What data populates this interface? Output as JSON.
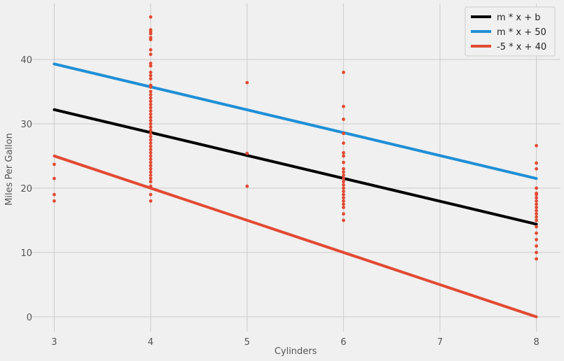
{
  "chart_data": {
    "type": "scatter",
    "title": "",
    "xlabel": "Cylinders",
    "ylabel": "Miles Per Gallon",
    "xlim": [
      2.75,
      8.25
    ],
    "ylim": [
      -2.3,
      48.7
    ],
    "xticks": [
      3,
      4,
      5,
      6,
      7,
      8
    ],
    "yticks": [
      0,
      10,
      20,
      30,
      40
    ],
    "grid": true,
    "legend_position": "top-right",
    "points": {
      "color": "#e24a33",
      "data": [
        [
          3,
          18
        ],
        [
          3,
          19
        ],
        [
          3,
          21.5
        ],
        [
          3,
          23.7
        ],
        [
          4,
          18
        ],
        [
          4,
          19
        ],
        [
          4,
          20.3
        ],
        [
          4,
          21
        ],
        [
          4,
          21.5
        ],
        [
          4,
          22
        ],
        [
          4,
          22.5
        ],
        [
          4,
          23
        ],
        [
          4,
          23.5
        ],
        [
          4,
          24
        ],
        [
          4,
          24.5
        ],
        [
          4,
          25
        ],
        [
          4,
          25.5
        ],
        [
          4,
          26
        ],
        [
          4,
          26.5
        ],
        [
          4,
          27
        ],
        [
          4,
          27.5
        ],
        [
          4,
          28
        ],
        [
          4,
          28.5
        ],
        [
          4,
          29
        ],
        [
          4,
          29.5
        ],
        [
          4,
          30
        ],
        [
          4,
          30.5
        ],
        [
          4,
          31
        ],
        [
          4,
          31.5
        ],
        [
          4,
          32
        ],
        [
          4,
          32.5
        ],
        [
          4,
          33
        ],
        [
          4,
          33.5
        ],
        [
          4,
          34
        ],
        [
          4,
          34.5
        ],
        [
          4,
          35
        ],
        [
          4,
          35.7
        ],
        [
          4,
          36
        ],
        [
          4,
          37
        ],
        [
          4,
          37.5
        ],
        [
          4,
          38
        ],
        [
          4,
          39
        ],
        [
          4,
          39.4
        ],
        [
          4,
          40.8
        ],
        [
          4,
          41.5
        ],
        [
          4,
          43.1
        ],
        [
          4,
          43.4
        ],
        [
          4,
          44
        ],
        [
          4,
          44.3
        ],
        [
          4,
          44.6
        ],
        [
          4,
          46.6
        ],
        [
          5,
          20.3
        ],
        [
          5,
          25.4
        ],
        [
          5,
          36.4
        ],
        [
          6,
          15
        ],
        [
          6,
          16
        ],
        [
          6,
          17
        ],
        [
          6,
          17.5
        ],
        [
          6,
          18
        ],
        [
          6,
          18.5
        ],
        [
          6,
          19
        ],
        [
          6,
          19.5
        ],
        [
          6,
          20
        ],
        [
          6,
          20.5
        ],
        [
          6,
          21
        ],
        [
          6,
          21.5
        ],
        [
          6,
          22
        ],
        [
          6,
          22.5
        ],
        [
          6,
          23
        ],
        [
          6,
          24
        ],
        [
          6,
          25
        ],
        [
          6,
          25.5
        ],
        [
          6,
          27
        ],
        [
          6,
          28.5
        ],
        [
          6,
          30.7
        ],
        [
          6,
          32.7
        ],
        [
          6,
          38
        ],
        [
          8,
          9
        ],
        [
          8,
          10
        ],
        [
          8,
          11
        ],
        [
          8,
          12
        ],
        [
          8,
          13
        ],
        [
          8,
          14
        ],
        [
          8,
          15
        ],
        [
          8,
          15.5
        ],
        [
          8,
          16
        ],
        [
          8,
          16.5
        ],
        [
          8,
          17
        ],
        [
          8,
          17.5
        ],
        [
          8,
          18
        ],
        [
          8,
          18.5
        ],
        [
          8,
          19
        ],
        [
          8,
          19.2
        ],
        [
          8,
          20
        ],
        [
          8,
          23
        ],
        [
          8,
          23.9
        ],
        [
          8,
          26.6
        ]
      ]
    },
    "series": [
      {
        "name": "m * x + b",
        "color": "#000000",
        "x": [
          3,
          8
        ],
        "y": [
          32.2,
          14.4
        ]
      },
      {
        "name": "m * x + 50",
        "color": "#1f8fd6",
        "x": [
          3,
          8
        ],
        "y": [
          39.3,
          21.5
        ]
      },
      {
        "name": "-5 * x + 40",
        "color": "#e24a33",
        "x": [
          3,
          8
        ],
        "y": [
          25,
          0
        ]
      }
    ]
  }
}
